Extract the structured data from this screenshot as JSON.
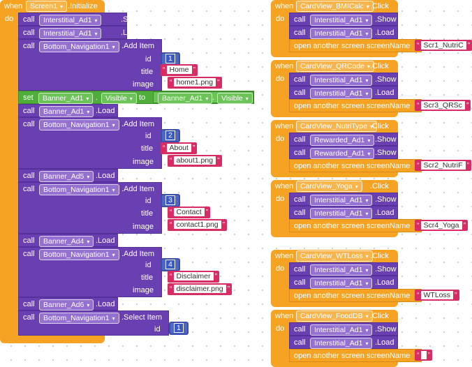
{
  "blocks": {
    "when": "when",
    "do": "do",
    "call": "call",
    "set": "set",
    "to": "to",
    "open_screen": "open another screen",
    "screenName": "screenName",
    "id": "id",
    "title": "title",
    "image": "image",
    "dot_show": ".Show",
    "dot_load": ".Load",
    "dot_add_item": ".Add Item",
    "dot_select_item": ".Select Item",
    "dot_click": ".Click",
    "dot_initialize": ".Initialize",
    "visible": "Visible",
    "dot": "."
  },
  "init": {
    "component": "Screen1",
    "interstitial": "Interstitial_Ad1",
    "bottom_nav": "Bottom_Navigation1",
    "banner1": "Banner_Ad1",
    "banner5": "Banner_Ad5",
    "banner4": "Banner_Ad4",
    "banner6": "Banner_Ad6",
    "items": [
      {
        "id": "1",
        "title": "Home",
        "image": "home1.png"
      },
      {
        "id": "2",
        "title": "About",
        "image": "about1.png"
      },
      {
        "id": "3",
        "title": "Contact",
        "image": "contact1.png"
      },
      {
        "id": "4",
        "title": "Disclaimer",
        "image": "disclaimer.png"
      }
    ],
    "select_id": "1"
  },
  "events": [
    {
      "component": "CardView_BMICalc",
      "ads": [
        "Interstitial_Ad1",
        "Interstitial_Ad1"
      ],
      "methods": [
        ".Show",
        ".Load"
      ],
      "screen": "Scr1_NutriC"
    },
    {
      "component": "CardView_QRCode",
      "ads": [
        "Interstitial_Ad1",
        "Interstitial_Ad1"
      ],
      "methods": [
        ".Show",
        ".Load"
      ],
      "screen": "Scr3_QRSc"
    },
    {
      "component": "CardView_NutriType",
      "ads": [
        "Rewarded_Ad1",
        "Rewarded_Ad1"
      ],
      "methods": [
        ".Show",
        ".Show"
      ],
      "screen": "Scr2_NutriF"
    },
    {
      "component": "CardView_Yoga",
      "ads": [
        "Interstitial_Ad1",
        "Interstitial_Ad1"
      ],
      "methods": [
        ".Show",
        ".Load"
      ],
      "screen": "Scr4_Yoga"
    },
    {
      "component": "CardView_WTLoss",
      "ads": [
        "Interstitial_Ad1",
        "Interstitial_Ad1"
      ],
      "methods": [
        ".Show",
        ".Load"
      ],
      "screen": "WTLoss"
    },
    {
      "component": "CardView_FoodDB",
      "ads": [
        "Interstitial_Ad1",
        "Interstitial_Ad1"
      ],
      "methods": [
        ".Show",
        ".Load"
      ],
      "screen": ""
    }
  ],
  "arrow": "▾"
}
